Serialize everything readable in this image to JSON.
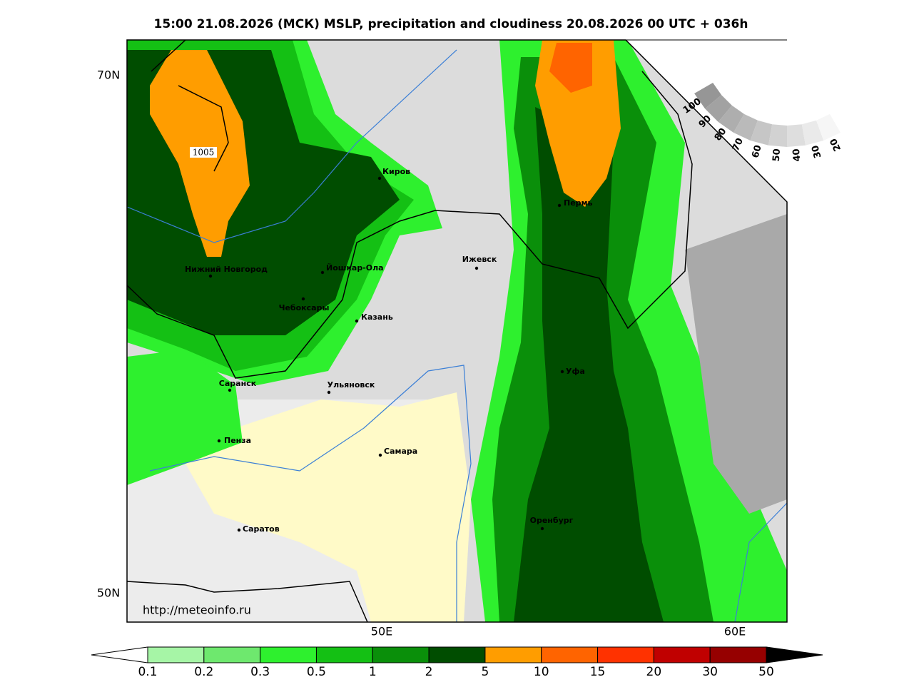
{
  "title": "15:00 21.08.2026 (МСК) MSLP, precipitation and cloudiness 20.08.2026 00 UTC + 036h",
  "map": {
    "lat_labels": [
      "70N",
      "50N"
    ],
    "lon_labels": [
      "50E",
      "60E"
    ],
    "isobar_label": "1005",
    "url": "http://meteoinfo.ru",
    "cities": [
      "Киров",
      "Пермь",
      "Нижний Новгород",
      "Йошкар-Ола",
      "Ижевск",
      "Чебоксары",
      "Казань",
      "Саранск",
      "Ульяновск",
      "Уфа",
      "Пенза",
      "Самара",
      "Оренбург",
      "Саратов"
    ]
  },
  "colorbar": {
    "levels": [
      0.1,
      0.2,
      0.3,
      0.5,
      1,
      2,
      5,
      10,
      15,
      20,
      30,
      50
    ],
    "colors": [
      "#a6f5a6",
      "#6ee86e",
      "#2ef02e",
      "#14c014",
      "#0a8f0a",
      "#004d00",
      "#ff9d00",
      "#ff6400",
      "#ff3200",
      "#c00000",
      "#960000"
    ]
  },
  "cloud_legend": {
    "levels": [
      100,
      90,
      80,
      70,
      60,
      50,
      40,
      30,
      20
    ]
  }
}
